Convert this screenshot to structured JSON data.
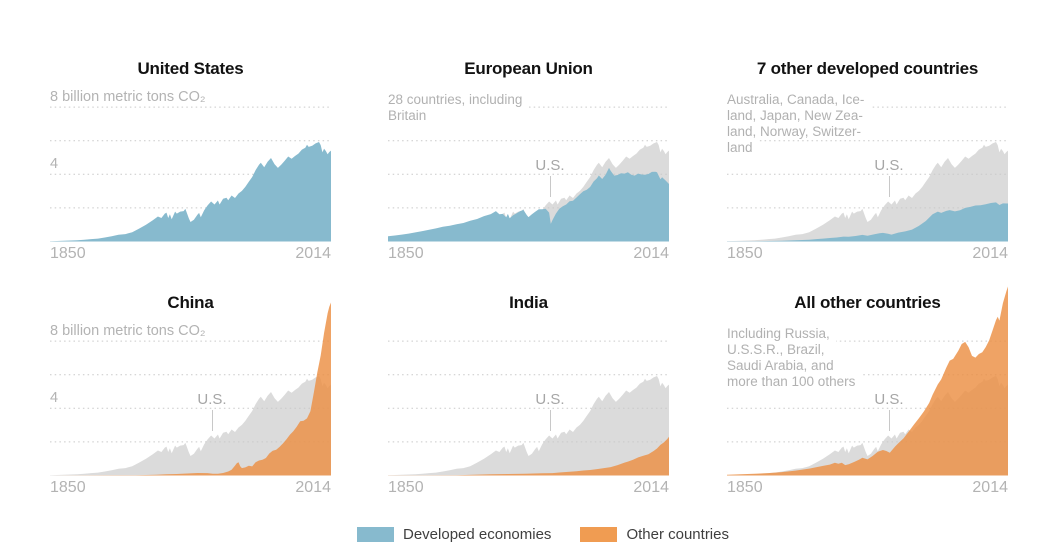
{
  "colors": {
    "developed": "#87BACE",
    "other": "#F09C52",
    "other_area": "#EC8F43",
    "us_reference": "#DBDBDB",
    "grid": "#C9C9C9",
    "title": "#121212",
    "muted_text": "#B1B1B1",
    "axis_text": "#B3B3B3",
    "us_label_text": "#A6A6A6",
    "legend_text": "#3F3F3F"
  },
  "axis": {
    "x_start": "1850",
    "x_end": "2014",
    "y_top_label": "8 billion metric tons CO₂",
    "y_mid_label": "4",
    "us_ref_label": "U.S."
  },
  "legend": [
    {
      "label": "Developed economies",
      "color_key": "developed"
    },
    {
      "label": "Other countries",
      "color_key": "other"
    }
  ],
  "panels": [
    {
      "title": "United States",
      "subtitle_lines": [],
      "show_y_labels": true,
      "show_us_reference": false,
      "show_us_label": false,
      "series": "united_states",
      "fill": "developed"
    },
    {
      "title": "European Union",
      "subtitle_lines": [
        "28 countries, including",
        "Britain"
      ],
      "show_y_labels": false,
      "show_us_reference": true,
      "show_us_label": true,
      "series": "european_union",
      "fill": "developed"
    },
    {
      "title": "7 other developed countries",
      "subtitle_lines": [
        "Australia, Canada, Ice-",
        "land, Japan, New Zea-",
        "land, Norway, Switzer-",
        "land"
      ],
      "show_y_labels": false,
      "show_us_reference": true,
      "show_us_label": true,
      "series": "seven_other_developed",
      "fill": "developed"
    },
    {
      "title": "China",
      "subtitle_lines": [],
      "show_y_labels": true,
      "show_us_reference": true,
      "show_us_label": true,
      "series": "china",
      "fill": "other"
    },
    {
      "title": "India",
      "subtitle_lines": [],
      "show_y_labels": false,
      "show_us_reference": true,
      "show_us_label": true,
      "series": "india",
      "fill": "other"
    },
    {
      "title": "All other countries",
      "subtitle_lines": [
        "Including Russia,",
        "U.S.S.R., Brazil,",
        "Saudi Arabia, and",
        "more than 100 others"
      ],
      "show_y_labels": false,
      "show_us_reference": true,
      "show_us_label": true,
      "series": "all_other_countries",
      "fill": "other"
    }
  ],
  "chart_data": {
    "type": "area",
    "unit": "billion metric tons CO2",
    "x_range": [
      1850,
      2014
    ],
    "y_gridlines": [
      2,
      4,
      6,
      8
    ],
    "grid_style": "dotted",
    "us_reference_overlaid_in_all_but_first_panel": true,
    "series": {
      "united_states": [
        [
          1850,
          0.02
        ],
        [
          1854,
          0.03
        ],
        [
          1858,
          0.04
        ],
        [
          1862,
          0.06
        ],
        [
          1866,
          0.08
        ],
        [
          1870,
          0.1
        ],
        [
          1874,
          0.14
        ],
        [
          1878,
          0.17
        ],
        [
          1882,
          0.24
        ],
        [
          1886,
          0.31
        ],
        [
          1890,
          0.4
        ],
        [
          1894,
          0.44
        ],
        [
          1898,
          0.55
        ],
        [
          1902,
          0.77
        ],
        [
          1906,
          1.0
        ],
        [
          1910,
          1.26
        ],
        [
          1913,
          1.49
        ],
        [
          1915,
          1.4
        ],
        [
          1917,
          1.66
        ],
        [
          1918,
          1.72
        ],
        [
          1919,
          1.4
        ],
        [
          1920,
          1.62
        ],
        [
          1921,
          1.32
        ],
        [
          1923,
          1.78
        ],
        [
          1924,
          1.66
        ],
        [
          1926,
          1.78
        ],
        [
          1928,
          1.81
        ],
        [
          1929,
          1.94
        ],
        [
          1931,
          1.38
        ],
        [
          1932,
          1.16
        ],
        [
          1934,
          1.3
        ],
        [
          1936,
          1.59
        ],
        [
          1937,
          1.7
        ],
        [
          1938,
          1.44
        ],
        [
          1940,
          1.86
        ],
        [
          1942,
          2.15
        ],
        [
          1944,
          2.38
        ],
        [
          1946,
          2.2
        ],
        [
          1948,
          2.44
        ],
        [
          1949,
          2.2
        ],
        [
          1951,
          2.54
        ],
        [
          1953,
          2.6
        ],
        [
          1954,
          2.46
        ],
        [
          1956,
          2.74
        ],
        [
          1958,
          2.59
        ],
        [
          1960,
          2.86
        ],
        [
          1962,
          3.01
        ],
        [
          1964,
          3.25
        ],
        [
          1966,
          3.56
        ],
        [
          1968,
          3.84
        ],
        [
          1970,
          4.25
        ],
        [
          1972,
          4.57
        ],
        [
          1973,
          4.69
        ],
        [
          1975,
          4.42
        ],
        [
          1977,
          4.75
        ],
        [
          1979,
          4.97
        ],
        [
          1981,
          4.61
        ],
        [
          1983,
          4.38
        ],
        [
          1985,
          4.58
        ],
        [
          1987,
          4.81
        ],
        [
          1989,
          5.06
        ],
        [
          1991,
          4.93
        ],
        [
          1993,
          5.09
        ],
        [
          1995,
          5.23
        ],
        [
          1997,
          5.47
        ],
        [
          1999,
          5.58
        ],
        [
          2000,
          5.76
        ],
        [
          2001,
          5.63
        ],
        [
          2003,
          5.7
        ],
        [
          2005,
          5.84
        ],
        [
          2007,
          5.92
        ],
        [
          2008,
          5.74
        ],
        [
          2009,
          5.31
        ],
        [
          2010,
          5.52
        ],
        [
          2011,
          5.38
        ],
        [
          2012,
          5.19
        ],
        [
          2013,
          5.33
        ],
        [
          2014,
          5.41
        ]
      ],
      "european_union": [
        [
          1850,
          0.31
        ],
        [
          1854,
          0.36
        ],
        [
          1858,
          0.41
        ],
        [
          1862,
          0.47
        ],
        [
          1866,
          0.54
        ],
        [
          1870,
          0.62
        ],
        [
          1874,
          0.7
        ],
        [
          1878,
          0.78
        ],
        [
          1882,
          0.88
        ],
        [
          1886,
          0.94
        ],
        [
          1890,
          1.03
        ],
        [
          1894,
          1.1
        ],
        [
          1898,
          1.24
        ],
        [
          1902,
          1.34
        ],
        [
          1906,
          1.51
        ],
        [
          1910,
          1.63
        ],
        [
          1913,
          1.81
        ],
        [
          1915,
          1.62
        ],
        [
          1917,
          1.64
        ],
        [
          1919,
          1.44
        ],
        [
          1920,
          1.64
        ],
        [
          1921,
          1.38
        ],
        [
          1923,
          1.56
        ],
        [
          1925,
          1.67
        ],
        [
          1927,
          1.8
        ],
        [
          1929,
          1.88
        ],
        [
          1931,
          1.57
        ],
        [
          1932,
          1.45
        ],
        [
          1934,
          1.62
        ],
        [
          1936,
          1.78
        ],
        [
          1938,
          1.92
        ],
        [
          1940,
          1.92
        ],
        [
          1942,
          1.95
        ],
        [
          1944,
          1.72
        ],
        [
          1945,
          1.05
        ],
        [
          1946,
          1.28
        ],
        [
          1948,
          1.66
        ],
        [
          1950,
          1.95
        ],
        [
          1952,
          2.1
        ],
        [
          1954,
          2.2
        ],
        [
          1956,
          2.39
        ],
        [
          1958,
          2.43
        ],
        [
          1960,
          2.62
        ],
        [
          1962,
          2.81
        ],
        [
          1964,
          2.99
        ],
        [
          1966,
          3.08
        ],
        [
          1968,
          3.25
        ],
        [
          1970,
          3.57
        ],
        [
          1972,
          3.76
        ],
        [
          1973,
          3.93
        ],
        [
          1975,
          3.72
        ],
        [
          1977,
          3.97
        ],
        [
          1979,
          4.38
        ],
        [
          1980,
          4.2
        ],
        [
          1982,
          3.92
        ],
        [
          1984,
          3.96
        ],
        [
          1986,
          4.06
        ],
        [
          1988,
          4.04
        ],
        [
          1990,
          4.12
        ],
        [
          1992,
          3.97
        ],
        [
          1994,
          3.92
        ],
        [
          1996,
          4.04
        ],
        [
          1998,
          3.99
        ],
        [
          2000,
          3.97
        ],
        [
          2002,
          4.02
        ],
        [
          2004,
          4.14
        ],
        [
          2006,
          4.15
        ],
        [
          2007,
          4.12
        ],
        [
          2009,
          3.71
        ],
        [
          2010,
          3.83
        ],
        [
          2012,
          3.63
        ],
        [
          2014,
          3.42
        ]
      ],
      "seven_other_developed": [
        [
          1850,
          0.01
        ],
        [
          1858,
          0.015
        ],
        [
          1866,
          0.02
        ],
        [
          1874,
          0.03
        ],
        [
          1882,
          0.05
        ],
        [
          1890,
          0.08
        ],
        [
          1898,
          0.11
        ],
        [
          1902,
          0.14
        ],
        [
          1906,
          0.17
        ],
        [
          1910,
          0.21
        ],
        [
          1914,
          0.24
        ],
        [
          1918,
          0.29
        ],
        [
          1921,
          0.28
        ],
        [
          1925,
          0.33
        ],
        [
          1929,
          0.39
        ],
        [
          1932,
          0.34
        ],
        [
          1936,
          0.43
        ],
        [
          1939,
          0.49
        ],
        [
          1941,
          0.51
        ],
        [
          1944,
          0.46
        ],
        [
          1946,
          0.41
        ],
        [
          1950,
          0.53
        ],
        [
          1954,
          0.6
        ],
        [
          1958,
          0.71
        ],
        [
          1962,
          0.93
        ],
        [
          1966,
          1.22
        ],
        [
          1970,
          1.62
        ],
        [
          1973,
          1.78
        ],
        [
          1975,
          1.7
        ],
        [
          1978,
          1.82
        ],
        [
          1980,
          1.87
        ],
        [
          1983,
          1.79
        ],
        [
          1986,
          1.86
        ],
        [
          1989,
          2.0
        ],
        [
          1992,
          2.06
        ],
        [
          1995,
          2.14
        ],
        [
          1998,
          2.16
        ],
        [
          2001,
          2.22
        ],
        [
          2004,
          2.29
        ],
        [
          2007,
          2.33
        ],
        [
          2009,
          2.17
        ],
        [
          2011,
          2.27
        ],
        [
          2014,
          2.26
        ]
      ],
      "china": [
        [
          1850,
          0.0
        ],
        [
          1870,
          0.005
        ],
        [
          1890,
          0.01
        ],
        [
          1900,
          0.02
        ],
        [
          1906,
          0.03
        ],
        [
          1912,
          0.05
        ],
        [
          1918,
          0.07
        ],
        [
          1924,
          0.09
        ],
        [
          1930,
          0.12
        ],
        [
          1936,
          0.15
        ],
        [
          1942,
          0.14
        ],
        [
          1945,
          0.1
        ],
        [
          1948,
          0.11
        ],
        [
          1951,
          0.15
        ],
        [
          1954,
          0.24
        ],
        [
          1956,
          0.34
        ],
        [
          1958,
          0.59
        ],
        [
          1959,
          0.73
        ],
        [
          1960,
          0.79
        ],
        [
          1961,
          0.55
        ],
        [
          1962,
          0.44
        ],
        [
          1964,
          0.48
        ],
        [
          1966,
          0.58
        ],
        [
          1968,
          0.54
        ],
        [
          1970,
          0.79
        ],
        [
          1972,
          0.89
        ],
        [
          1974,
          0.94
        ],
        [
          1976,
          1.04
        ],
        [
          1978,
          1.31
        ],
        [
          1980,
          1.47
        ],
        [
          1982,
          1.53
        ],
        [
          1984,
          1.7
        ],
        [
          1986,
          1.91
        ],
        [
          1988,
          2.16
        ],
        [
          1990,
          2.42
        ],
        [
          1992,
          2.63
        ],
        [
          1994,
          2.9
        ],
        [
          1996,
          3.23
        ],
        [
          1998,
          3.26
        ],
        [
          2000,
          3.4
        ],
        [
          2002,
          3.83
        ],
        [
          2004,
          4.96
        ],
        [
          2006,
          6.13
        ],
        [
          2008,
          7.14
        ],
        [
          2010,
          8.5
        ],
        [
          2012,
          9.65
        ],
        [
          2013,
          10.05
        ],
        [
          2014,
          10.3
        ]
      ],
      "india": [
        [
          1850,
          0.003
        ],
        [
          1870,
          0.006
        ],
        [
          1890,
          0.02
        ],
        [
          1900,
          0.04
        ],
        [
          1910,
          0.07
        ],
        [
          1920,
          0.09
        ],
        [
          1930,
          0.1
        ],
        [
          1940,
          0.13
        ],
        [
          1946,
          0.14
        ],
        [
          1950,
          0.18
        ],
        [
          1956,
          0.22
        ],
        [
          1960,
          0.25
        ],
        [
          1964,
          0.3
        ],
        [
          1968,
          0.33
        ],
        [
          1972,
          0.38
        ],
        [
          1976,
          0.44
        ],
        [
          1980,
          0.5
        ],
        [
          1984,
          0.62
        ],
        [
          1988,
          0.77
        ],
        [
          1990,
          0.83
        ],
        [
          1993,
          0.94
        ],
        [
          1996,
          1.08
        ],
        [
          1999,
          1.18
        ],
        [
          2002,
          1.27
        ],
        [
          2005,
          1.46
        ],
        [
          2007,
          1.61
        ],
        [
          2009,
          1.82
        ],
        [
          2011,
          1.97
        ],
        [
          2013,
          2.17
        ],
        [
          2014,
          2.31
        ]
      ],
      "all_other_countries": [
        [
          1850,
          0.05
        ],
        [
          1858,
          0.07
        ],
        [
          1866,
          0.1
        ],
        [
          1874,
          0.14
        ],
        [
          1882,
          0.2
        ],
        [
          1890,
          0.29
        ],
        [
          1898,
          0.41
        ],
        [
          1902,
          0.49
        ],
        [
          1906,
          0.57
        ],
        [
          1910,
          0.65
        ],
        [
          1913,
          0.76
        ],
        [
          1915,
          0.7
        ],
        [
          1917,
          0.76
        ],
        [
          1919,
          0.62
        ],
        [
          1921,
          0.67
        ],
        [
          1924,
          0.8
        ],
        [
          1927,
          0.94
        ],
        [
          1929,
          1.06
        ],
        [
          1932,
          0.96
        ],
        [
          1935,
          1.16
        ],
        [
          1938,
          1.41
        ],
        [
          1941,
          1.52
        ],
        [
          1943,
          1.46
        ],
        [
          1945,
          1.36
        ],
        [
          1948,
          1.71
        ],
        [
          1950,
          1.92
        ],
        [
          1953,
          2.21
        ],
        [
          1956,
          2.61
        ],
        [
          1959,
          3.02
        ],
        [
          1962,
          3.41
        ],
        [
          1965,
          3.82
        ],
        [
          1968,
          4.32
        ],
        [
          1970,
          4.81
        ],
        [
          1973,
          5.42
        ],
        [
          1975,
          5.72
        ],
        [
          1978,
          6.42
        ],
        [
          1980,
          6.84
        ],
        [
          1982,
          6.94
        ],
        [
          1985,
          7.42
        ],
        [
          1987,
          7.83
        ],
        [
          1989,
          7.95
        ],
        [
          1991,
          7.63
        ],
        [
          1993,
          7.12
        ],
        [
          1995,
          7.02
        ],
        [
          1997,
          7.23
        ],
        [
          1999,
          7.34
        ],
        [
          2001,
          7.64
        ],
        [
          2003,
          8.05
        ],
        [
          2005,
          8.64
        ],
        [
          2007,
          9.25
        ],
        [
          2008,
          9.45
        ],
        [
          2009,
          9.22
        ],
        [
          2011,
          10.25
        ],
        [
          2013,
          10.95
        ],
        [
          2014,
          11.25
        ]
      ]
    }
  }
}
